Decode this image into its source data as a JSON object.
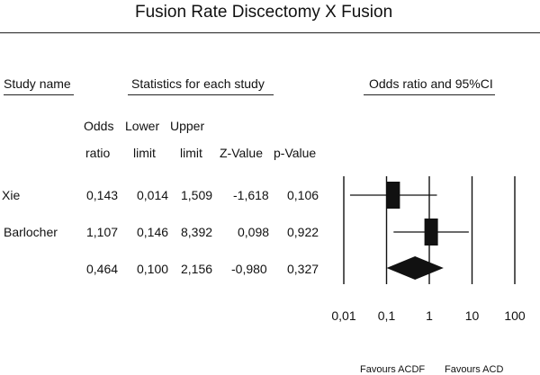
{
  "chart_data": {
    "type": "forest",
    "title": "Fusion Rate Discectomy X Fusion",
    "headers": {
      "study_name": "Study name",
      "statistics": "Statistics for each study",
      "plot": "Odds ratio and 95%CI",
      "odds_ratio": [
        "Odds",
        "ratio"
      ],
      "lower_limit": [
        "Lower",
        "limit"
      ],
      "upper_limit": [
        "Upper",
        "limit"
      ],
      "z_value": "Z-Value",
      "p_value": "p-Value"
    },
    "studies": [
      {
        "name": "Xie",
        "odds_ratio": 0.143,
        "lower": 0.014,
        "upper": 1.509,
        "or_text": "0,143",
        "lower_text": "0,014",
        "upper_text": "1,509",
        "z_text": "-1,618",
        "p_text": "0,106"
      },
      {
        "name": "Barlocher",
        "odds_ratio": 1.107,
        "lower": 0.146,
        "upper": 8.392,
        "or_text": "1,107",
        "lower_text": "0,146",
        "upper_text": "8,392",
        "z_text": "0,098",
        "p_text": "0,922"
      }
    ],
    "summary": {
      "name": "",
      "odds_ratio": 0.464,
      "lower": 0.1,
      "upper": 2.156,
      "or_text": "0,464",
      "lower_text": "0,100",
      "upper_text": "2,156",
      "z_text": "-0,980",
      "p_text": "0,327"
    },
    "x_scale": "log",
    "x_ticks": [
      0.01,
      0.1,
      1,
      10,
      100
    ],
    "x_tick_labels": [
      "0,01",
      "0,1",
      "1",
      "10",
      "100"
    ],
    "xlim": [
      0.01,
      100
    ],
    "favours_left": "Favours ACDF",
    "favours_right": "Favours ACD"
  }
}
